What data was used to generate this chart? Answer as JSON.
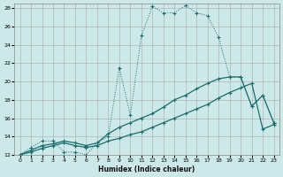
{
  "xlabel": "Humidex (Indice chaleur)",
  "background_color": "#cce8e8",
  "grid_color": "#aaaaaa",
  "line_color": "#1a6e6e",
  "xlim": [
    -0.5,
    23.5
  ],
  "ylim": [
    12,
    28.5
  ],
  "xtick_labels": [
    "0",
    "1",
    "2",
    "3",
    "4",
    "5",
    "6",
    "7",
    "8",
    "9",
    "10",
    "11",
    "12",
    "13",
    "14",
    "15",
    "16",
    "17",
    "18",
    "19",
    "20",
    "21",
    "22",
    "23"
  ],
  "xticks": [
    0,
    1,
    2,
    3,
    4,
    5,
    6,
    7,
    8,
    9,
    10,
    11,
    12,
    13,
    14,
    15,
    16,
    17,
    18,
    19,
    20,
    21,
    22,
    23
  ],
  "yticks": [
    12,
    14,
    16,
    18,
    20,
    22,
    24,
    26,
    28
  ],
  "line1_x": [
    0,
    1,
    2,
    3,
    4,
    5,
    6,
    7,
    8,
    9,
    10,
    11,
    12,
    13,
    14,
    15,
    16,
    17,
    18,
    19,
    20,
    21,
    22,
    23
  ],
  "line1_y": [
    12.0,
    12.8,
    13.5,
    13.5,
    12.3,
    12.3,
    12.0,
    13.3,
    14.0,
    21.5,
    16.3,
    25.0,
    28.2,
    27.5,
    27.5,
    28.3,
    27.5,
    27.2,
    24.8,
    20.5,
    20.5,
    17.3,
    18.5,
    15.5
  ],
  "line2_x": [
    0,
    1,
    2,
    3,
    4,
    5,
    6,
    7,
    8,
    9,
    10,
    11,
    12,
    13,
    14,
    15,
    16,
    17,
    18,
    19,
    20,
    21,
    22,
    23
  ],
  "line2_y": [
    12.0,
    12.5,
    13.0,
    13.2,
    13.5,
    13.3,
    13.0,
    13.3,
    14.3,
    15.0,
    15.5,
    16.0,
    16.5,
    17.2,
    18.0,
    18.5,
    19.2,
    19.8,
    20.3,
    20.5,
    20.5,
    17.3,
    18.5,
    15.5
  ],
  "line3_x": [
    0,
    1,
    2,
    3,
    4,
    5,
    6,
    7,
    8,
    9,
    10,
    11,
    12,
    13,
    14,
    15,
    16,
    17,
    18,
    19,
    20,
    21,
    22,
    23
  ],
  "line3_y": [
    12.0,
    12.3,
    12.7,
    13.0,
    13.3,
    13.0,
    12.8,
    13.0,
    13.5,
    13.8,
    14.2,
    14.5,
    15.0,
    15.5,
    16.0,
    16.5,
    17.0,
    17.5,
    18.2,
    18.8,
    19.3,
    19.8,
    14.8,
    15.3
  ]
}
